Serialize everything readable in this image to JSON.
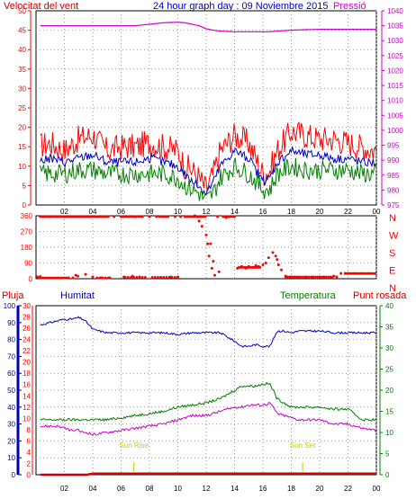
{
  "header": {
    "title": "24 hour graph day : 09 Noviembre 2015",
    "left_label": "Velocitat del vent",
    "right_label": "Pressió"
  },
  "colors": {
    "red": "#ff0000",
    "blue": "#0000cc",
    "green": "#008000",
    "magenta": "#cc00cc",
    "darkred": "#cc0000",
    "axis_left": "#ff0000",
    "axis_right": "#cc00cc",
    "yellow": "#cccc00"
  },
  "chart_data": [
    {
      "type": "line",
      "title": "24 hour graph day : 09 Noviembre 2015",
      "x_tick_labels": [
        "02",
        "04",
        "06",
        "08",
        "10",
        "12",
        "14",
        "16",
        "18",
        "20",
        "22",
        "00"
      ],
      "y_left": {
        "label": "Velocitat del vent",
        "ylim": [
          0,
          50
        ],
        "ticks": [
          0,
          5,
          10,
          15,
          20,
          25,
          30,
          35,
          40,
          45,
          50
        ]
      },
      "y_right": {
        "label": "Pressió",
        "ylim": [
          975,
          1040
        ],
        "ticks": [
          975,
          980,
          985,
          990,
          995,
          1000,
          1005,
          1010,
          1015,
          1020,
          1025,
          1030,
          1035,
          1040
        ]
      },
      "x_hours": [
        0,
        1,
        2,
        3,
        4,
        5,
        6,
        7,
        8,
        9,
        10,
        10.5,
        11,
        11.5,
        12,
        12.5,
        13,
        14,
        15,
        15.5,
        16,
        16.5,
        17,
        18,
        19,
        20,
        21,
        22,
        23,
        24
      ],
      "series": [
        {
          "axis": "left",
          "color": "#ff0000",
          "values": [
            15,
            16,
            14,
            17,
            18,
            14,
            15,
            15,
            16,
            15,
            14,
            10,
            9,
            7,
            4,
            8,
            14,
            18,
            16,
            12,
            8,
            9,
            14,
            19,
            18,
            17,
            17,
            16,
            15,
            14
          ]
        },
        {
          "axis": "left",
          "color": "#0000cc",
          "values": [
            11,
            12,
            11,
            12,
            13,
            11,
            11,
            11,
            12,
            11,
            10,
            8,
            6,
            5,
            3,
            6,
            10,
            14,
            12,
            9,
            6,
            7,
            11,
            14,
            13,
            13,
            12,
            12,
            11,
            11
          ]
        },
        {
          "axis": "left",
          "color": "#008000",
          "values": [
            8,
            8,
            8,
            9,
            9,
            8,
            8,
            8,
            8,
            8,
            7,
            5,
            4,
            3,
            1,
            3,
            7,
            10,
            8,
            6,
            4,
            4,
            8,
            10,
            9,
            9,
            9,
            9,
            8,
            8
          ]
        },
        {
          "axis": "right",
          "color": "#cc00cc",
          "values": [
            1035,
            1035,
            1035,
            1035,
            1035,
            1035,
            1035,
            1035,
            1035.5,
            1036,
            1036.2,
            1036,
            1035.5,
            1035,
            1034,
            1033.5,
            1033.2,
            1033,
            1033,
            1033,
            1033,
            1033,
            1033.2,
            1033.5,
            1033.7,
            1033.8,
            1033.8,
            1033.8,
            1033.8,
            1033.8
          ]
        }
      ]
    },
    {
      "type": "scatter",
      "title": "",
      "x_tick_labels": [],
      "y_left": {
        "ylim": [
          0,
          360
        ],
        "ticks": [
          0,
          90,
          180,
          270,
          360
        ]
      },
      "direction_labels": [
        "N",
        "W",
        "S",
        "E",
        "N"
      ],
      "series": [
        {
          "color": "#ff0000",
          "x": [
            0.5,
            1,
            1.5,
            2,
            2.5,
            2.9,
            3.3,
            3.8,
            4.3,
            5,
            5.5,
            6,
            6.5,
            7,
            7.5,
            8,
            8.5,
            9,
            9.3,
            9.8,
            10.2,
            10.6,
            11,
            11.4,
            11.8,
            12,
            12.1,
            12.2,
            12.4,
            12.6,
            12.8,
            13.2,
            13.6,
            14,
            14.2,
            14.5,
            15,
            15.5,
            16,
            16.4,
            16.7,
            17,
            17.3,
            17.6,
            18,
            18.5,
            19,
            19.5,
            20,
            20.3,
            21,
            21.5,
            22,
            22.5,
            23,
            23.5,
            0.1,
            0.3,
            2.3,
            2.6,
            2.8,
            2.95,
            3.5,
            4,
            4.6,
            5.2,
            6.2,
            6.8,
            7.3,
            8.2,
            8.8,
            9.5,
            10,
            11.2,
            11.5,
            11.7,
            12.3,
            12.5,
            12.9,
            13.4,
            14.8,
            15.3,
            15.7,
            16.2,
            16.9,
            17.1,
            17.9,
            18.2,
            21.2,
            21.8
          ],
          "y": [
            355,
            355,
            355,
            355,
            355,
            355,
            355,
            355,
            355,
            355,
            355,
            355,
            355,
            355,
            355,
            355,
            355,
            355,
            355,
            355,
            355,
            355,
            355,
            355,
            355,
            250,
            200,
            130,
            60,
            20,
            355,
            355,
            355,
            355,
            60,
            70,
            70,
            75,
            80,
            120,
            150,
            110,
            50,
            15,
            10,
            10,
            10,
            10,
            10,
            10,
            15,
            30,
            30,
            30,
            30,
            30,
            10,
            12,
            5,
            5,
            20,
            15,
            25,
            10,
            5,
            5,
            10,
            15,
            10,
            5,
            8,
            10,
            10,
            360,
            330,
            300,
            200,
            100,
            40,
            350,
            60,
            65,
            70,
            90,
            130,
            80,
            10,
            10,
            10,
            30
          ]
        }
      ]
    },
    {
      "type": "line",
      "title": "",
      "x_tick_labels": [
        "02",
        "04",
        "06",
        "08",
        "10",
        "12",
        "14",
        "16",
        "18",
        "20",
        "22",
        "00"
      ],
      "y_left_outer": {
        "label": "Pluja",
        "ylim": [
          0,
          100
        ],
        "ticks": [
          0,
          10,
          20,
          30,
          40,
          50,
          60,
          70,
          80,
          90,
          100
        ]
      },
      "y_left_inner": {
        "label": "Humitat",
        "ylim": [
          0,
          30
        ],
        "ticks": [
          0,
          2,
          4,
          6,
          8,
          10,
          12,
          14,
          16,
          18,
          20,
          22,
          24,
          26,
          28,
          30
        ]
      },
      "y_right": {
        "label": "Temperatura",
        "ylim": [
          0,
          40
        ],
        "ticks": [
          0,
          5,
          10,
          15,
          20,
          25,
          30,
          35,
          40
        ]
      },
      "extra_labels": {
        "dew": "Punt rosada",
        "sunrise": "Sun Rise",
        "sunset": "Sun Set"
      },
      "x_hours": [
        0,
        0.5,
        1,
        1.5,
        2,
        2.5,
        3,
        3.3,
        3.6,
        4,
        5,
        6,
        7,
        8,
        9,
        10,
        11,
        12,
        13,
        14,
        14.5,
        15,
        15.5,
        16,
        16.5,
        17,
        17.5,
        18,
        18.5,
        19,
        20,
        21,
        22,
        23,
        24
      ],
      "series": [
        {
          "name": "Humitat",
          "axis": "outer",
          "color": "#0000cc",
          "values": [
            88,
            89,
            90,
            91,
            92,
            92,
            93,
            92,
            90,
            86,
            84,
            84,
            84,
            84,
            84,
            83,
            84,
            84,
            84,
            79,
            76,
            76,
            77,
            76,
            76,
            85,
            85,
            84,
            85,
            85,
            85,
            84,
            84,
            84,
            84
          ]
        },
        {
          "name": "Temperatura",
          "axis": "right",
          "color": "#008000",
          "values": [
            13,
            13,
            13,
            13,
            13,
            13,
            13,
            13,
            13,
            13,
            13,
            13.5,
            14,
            14.5,
            15,
            16,
            16.5,
            17,
            18,
            20,
            21,
            21,
            21,
            21.5,
            21.5,
            18,
            17,
            16,
            16,
            16,
            16,
            15.5,
            15.5,
            13,
            13
          ]
        },
        {
          "name": "Punt rosada",
          "axis": "right",
          "color": "#cc00cc",
          "values": [
            11.5,
            11.5,
            11.5,
            11.5,
            11,
            10.5,
            10.5,
            10,
            10,
            9.5,
            10,
            10.5,
            11,
            11.5,
            12,
            13,
            14,
            14,
            15,
            16,
            16,
            16.5,
            16.5,
            16.5,
            17,
            14.5,
            14,
            13.5,
            13,
            13,
            13,
            12,
            12,
            11,
            10.5
          ]
        },
        {
          "name": "Pluja",
          "axis": "inner",
          "color": "#cc0000",
          "values": [
            0,
            0,
            0,
            0,
            0,
            0,
            0,
            0,
            0,
            0.2,
            0.2,
            0.2,
            0.2,
            0.2,
            0.2,
            0.2,
            0.2,
            0.2,
            0.2,
            0.2,
            0.2,
            0.2,
            0.2,
            0.2,
            0.2,
            0.2,
            0.2,
            0.2,
            0.2,
            0.2,
            0.2,
            0.2,
            0.2,
            0.2,
            0.2
          ]
        }
      ],
      "sun_events": [
        {
          "label": "Sun Rise",
          "hour": 6.9
        },
        {
          "label": "Sun Set",
          "hour": 18.8
        }
      ]
    }
  ]
}
